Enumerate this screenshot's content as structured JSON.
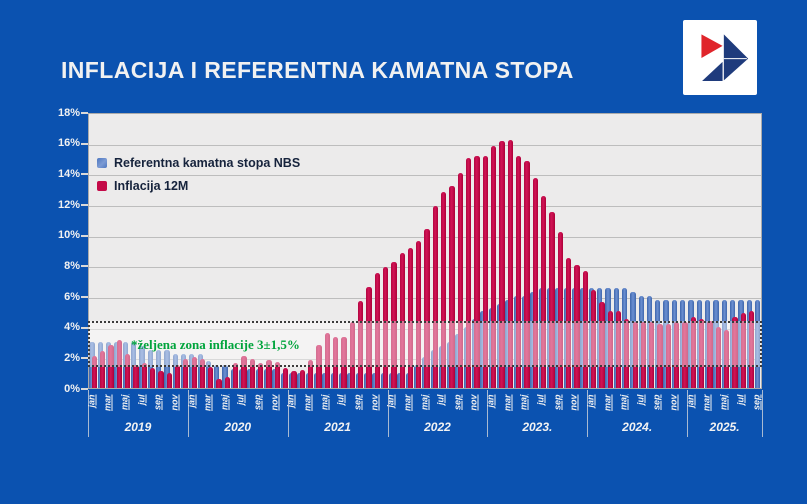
{
  "page": {
    "title": "INFLACIJA I REFERENTNA KAMATNA STOPA",
    "background_color": "#0B52B0"
  },
  "logo": {
    "name": "arrow-logo",
    "colors": {
      "red": "#E0252B",
      "navy": "#1F3B7C",
      "background": "#FFFFFF"
    }
  },
  "annotation": {
    "text": "*željena zona inflacije 3±1,5%",
    "color": "#00A43C"
  },
  "chart_data": {
    "type": "bar",
    "ylim": [
      0,
      18
    ],
    "y_tick_labels": [
      "0%",
      "2%",
      "4%",
      "6%",
      "8%",
      "10%",
      "12%",
      "14%",
      "16%",
      "18%"
    ],
    "x_month_ticks": [
      "jan",
      "mar",
      "maj",
      "jul",
      "sep",
      "nov"
    ],
    "grid": true,
    "legend_position": "top-left",
    "plot_background": "#ECEBEB",
    "gridline_color": "#BDBDBD",
    "target_zone": {
      "from": 1.5,
      "to": 4.5
    },
    "series": [
      {
        "name": "Referentna kamatna stopa NBS",
        "color": "#4E77C0",
        "key": "rate"
      },
      {
        "name": "Inflacija 12M",
        "color": "#C40A48",
        "key": "inflation"
      }
    ],
    "years": [
      {
        "label": "2019",
        "rate": [
          3.0,
          3.0,
          3.0,
          3.0,
          3.0,
          3.0,
          2.75,
          2.5,
          2.5,
          2.5,
          2.25,
          2.25
        ],
        "inflation": [
          2.1,
          2.4,
          2.8,
          3.1,
          2.2,
          1.5,
          1.6,
          1.3,
          1.1,
          1.0,
          1.5,
          1.9
        ]
      },
      {
        "label": "2020",
        "rate": [
          2.25,
          2.25,
          1.75,
          1.5,
          1.5,
          1.25,
          1.25,
          1.25,
          1.25,
          1.25,
          1.25,
          1.0
        ],
        "inflation": [
          2.0,
          1.9,
          1.4,
          0.6,
          0.7,
          1.6,
          2.1,
          1.9,
          1.6,
          1.8,
          1.7,
          1.3
        ]
      },
      {
        "label": "2021",
        "rate": [
          1.0,
          1.0,
          1.0,
          1.0,
          1.0,
          1.0,
          1.0,
          1.0,
          1.0,
          1.0,
          1.0,
          1.0
        ],
        "inflation": [
          1.1,
          1.2,
          1.8,
          2.8,
          3.6,
          3.3,
          3.3,
          4.3,
          5.7,
          6.6,
          7.5,
          7.9
        ]
      },
      {
        "label": "2022",
        "rate": [
          1.0,
          1.0,
          1.0,
          1.5,
          2.0,
          2.5,
          2.75,
          3.0,
          3.5,
          4.0,
          4.5,
          5.0
        ],
        "inflation": [
          8.2,
          8.8,
          9.1,
          9.6,
          10.4,
          11.9,
          12.8,
          13.2,
          14.0,
          15.0,
          15.1,
          15.1
        ]
      },
      {
        "label": "2023.",
        "rate": [
          5.25,
          5.5,
          5.75,
          6.0,
          6.0,
          6.25,
          6.5,
          6.5,
          6.5,
          6.5,
          6.5,
          6.5
        ],
        "inflation": [
          15.8,
          16.1,
          16.2,
          15.1,
          14.8,
          13.7,
          12.5,
          11.5,
          10.2,
          8.5,
          8.0,
          7.6
        ]
      },
      {
        "label": "2024.",
        "rate": [
          6.5,
          6.5,
          6.5,
          6.5,
          6.5,
          6.25,
          6.0,
          6.0,
          5.75,
          5.75,
          5.75,
          5.75
        ],
        "inflation": [
          6.4,
          5.6,
          5.0,
          5.0,
          4.5,
          4.3,
          4.3,
          4.3,
          4.2,
          4.2,
          4.3,
          4.3
        ]
      },
      {
        "label": "2025.",
        "rate": [
          5.75,
          5.75,
          5.75,
          5.75,
          5.75,
          5.75,
          5.75,
          5.75,
          5.75
        ],
        "inflation": [
          4.6,
          4.5,
          4.4,
          4.0,
          3.8,
          4.6,
          4.9,
          5.0,
          null
        ]
      }
    ]
  }
}
